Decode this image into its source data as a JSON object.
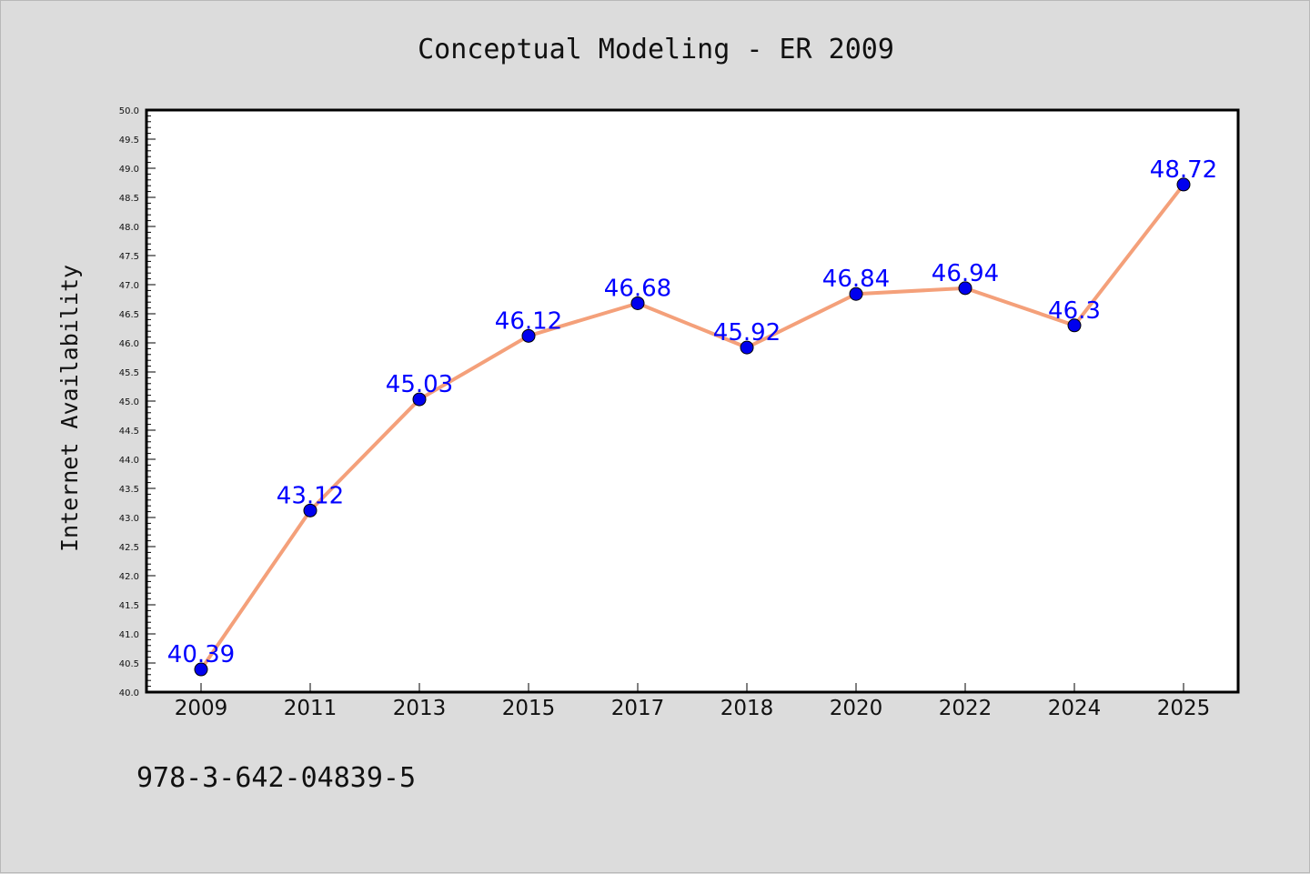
{
  "chart_data": {
    "type": "line",
    "title": "Conceptual Modeling - ER 2009",
    "xlabel": "",
    "ylabel": "Internet Availability",
    "categories": [
      "2009",
      "2011",
      "2013",
      "2015",
      "2017",
      "2018",
      "2020",
      "2022",
      "2024",
      "2025"
    ],
    "series": [
      {
        "values": [
          40.39,
          43.12,
          45.03,
          46.12,
          46.68,
          45.92,
          46.84,
          46.94,
          46.3,
          48.72
        ],
        "line_color": "#f4a07a",
        "marker_color": "#0000ee"
      }
    ],
    "data_labels": [
      "40.39",
      "43.12",
      "45.03",
      "46.12",
      "46.68",
      "45.92",
      "46.84",
      "46.94",
      "46.3",
      "48.72"
    ],
    "ylim": [
      40.0,
      50.0
    ],
    "y_ticks": [
      "40.0",
      "40.5",
      "41.0",
      "41.5",
      "42.0",
      "42.5",
      "43.0",
      "43.5",
      "44.0",
      "44.5",
      "45.0",
      "45.5",
      "46.0",
      "46.5",
      "47.0",
      "47.5",
      "48.0",
      "48.5",
      "49.0",
      "49.5",
      "50.0"
    ],
    "grid": false,
    "legend": "none",
    "label_color": "#0000ff",
    "background_color": "#dcdcdc",
    "plot_background": "#ffffff"
  },
  "footer": {
    "isbn": "978-3-642-04839-5"
  }
}
